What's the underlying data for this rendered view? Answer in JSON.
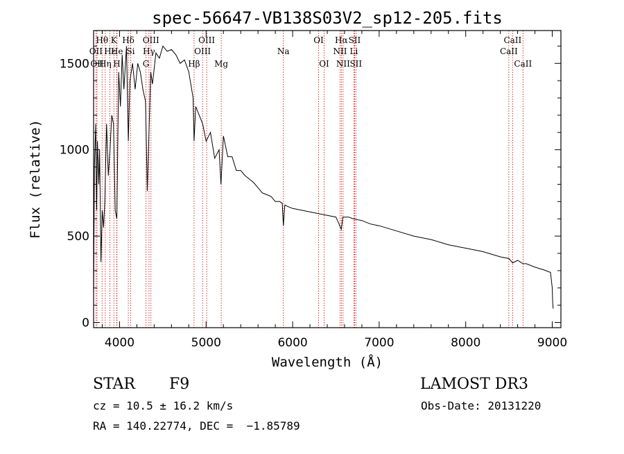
{
  "chart_data": {
    "type": "line",
    "title": "spec-56647-VB138S03V2_sp12-205.fits",
    "xlabel": "Wavelength (Å)",
    "ylabel": "Flux (relative)",
    "xlim": [
      3700,
      9100
    ],
    "ylim": [
      -30,
      1690
    ],
    "xticks": [
      4000,
      5000,
      6000,
      7000,
      8000,
      9000
    ],
    "yticks": [
      0,
      500,
      1000,
      1500
    ],
    "series": [
      {
        "name": "spectrum",
        "x": [
          3700,
          3710,
          3725,
          3735,
          3745,
          3760,
          3770,
          3785,
          3800,
          3815,
          3830,
          3850,
          3870,
          3890,
          3910,
          3930,
          3950,
          3968,
          3990,
          4010,
          4030,
          4050,
          4080,
          4101,
          4120,
          4150,
          4180,
          4210,
          4240,
          4270,
          4300,
          4320,
          4340,
          4360,
          4380,
          4420,
          4460,
          4500,
          4550,
          4600,
          4650,
          4700,
          4750,
          4800,
          4850,
          4861,
          4880,
          4920,
          4960,
          5000,
          5050,
          5100,
          5150,
          5172,
          5200,
          5250,
          5300,
          5350,
          5400,
          5450,
          5500,
          5550,
          5600,
          5650,
          5700,
          5750,
          5800,
          5850,
          5880,
          5893,
          5910,
          5950,
          6000,
          6100,
          6200,
          6300,
          6400,
          6500,
          6563,
          6580,
          6650,
          6700,
          6800,
          6900,
          7000,
          7200,
          7400,
          7600,
          7800,
          8000,
          8200,
          8400,
          8500,
          8542,
          8600,
          8662,
          8700,
          8800,
          8900,
          8980,
          9000,
          9005,
          9010
        ],
        "values": [
          150,
          900,
          1150,
          650,
          1050,
          800,
          1000,
          350,
          650,
          550,
          700,
          1150,
          850,
          1000,
          1200,
          1150,
          650,
          600,
          1450,
          1250,
          1550,
          1350,
          1600,
          1050,
          1400,
          1500,
          1350,
          1500,
          1450,
          1350,
          1280,
          760,
          1100,
          1450,
          1380,
          1560,
          1530,
          1600,
          1570,
          1580,
          1550,
          1500,
          1520,
          1450,
          1300,
          1050,
          1250,
          1200,
          1150,
          1050,
          1100,
          950,
          1000,
          800,
          1080,
          960,
          960,
          880,
          880,
          850,
          830,
          810,
          780,
          750,
          740,
          730,
          700,
          700,
          690,
          560,
          680,
          670,
          660,
          650,
          640,
          630,
          620,
          610,
          540,
          610,
          610,
          600,
          590,
          570,
          560,
          530,
          500,
          480,
          450,
          430,
          410,
          380,
          370,
          345,
          360,
          340,
          340,
          320,
          305,
          290,
          200,
          120,
          80
        ]
      }
    ],
    "spectral_lines": [
      {
        "label": "Hθ",
        "x": 3798,
        "row": 1
      },
      {
        "label": "K",
        "x": 3934,
        "row": 1
      },
      {
        "label": "Hδ",
        "x": 4101,
        "row": 1
      },
      {
        "label": "OIII",
        "x": 4363,
        "row": 1
      },
      {
        "label": "OIII",
        "x": 5007,
        "row": 1
      },
      {
        "label": "OI",
        "x": 6300,
        "row": 1
      },
      {
        "label": "Hα",
        "x": 6563,
        "row": 1
      },
      {
        "label": "SII",
        "x": 6716,
        "row": 1
      },
      {
        "label": "CaII",
        "x": 8542,
        "row": 1
      },
      {
        "label": "OII",
        "x": 3727,
        "row": 2
      },
      {
        "label": "Hε",
        "x": 3889,
        "row": 2
      },
      {
        "label": "He",
        "x": 3970,
        "row": 2
      },
      {
        "label": "Si",
        "x": 4128,
        "row": 2
      },
      {
        "label": "Hγ",
        "x": 4340,
        "row": 2
      },
      {
        "label": "OIII",
        "x": 4959,
        "row": 2
      },
      {
        "label": "Na",
        "x": 5893,
        "row": 2
      },
      {
        "label": "NII",
        "x": 6548,
        "row": 2
      },
      {
        "label": "Li",
        "x": 6708,
        "row": 2
      },
      {
        "label": "CaII",
        "x": 8498,
        "row": 2
      },
      {
        "label": "OII",
        "x": 3740,
        "row": 3
      },
      {
        "label": "Hη",
        "x": 3835,
        "row": 3
      },
      {
        "label": "H",
        "x": 3968,
        "row": 3
      },
      {
        "label": "G",
        "x": 4305,
        "row": 3
      },
      {
        "label": "Hβ",
        "x": 4861,
        "row": 3
      },
      {
        "label": "Mg",
        "x": 5175,
        "row": 3
      },
      {
        "label": "OI",
        "x": 6364,
        "row": 3
      },
      {
        "label": "NII",
        "x": 6583,
        "row": 3
      },
      {
        "label": "SII",
        "x": 6731,
        "row": 3
      },
      {
        "label": "CaII",
        "x": 8662,
        "row": 3
      }
    ]
  },
  "info": {
    "class": "STAR",
    "subclass": "F9",
    "survey": "LAMOST DR3",
    "cz": "cz = 10.5 ± 16.2 km/s",
    "obs_date": "Obs-Date: 20131220",
    "radec": "RA = 140.22774, DEC =  −1.85789"
  },
  "colors": {
    "line": "#000000",
    "marker": "#cc0000",
    "background": "#ffffff"
  }
}
